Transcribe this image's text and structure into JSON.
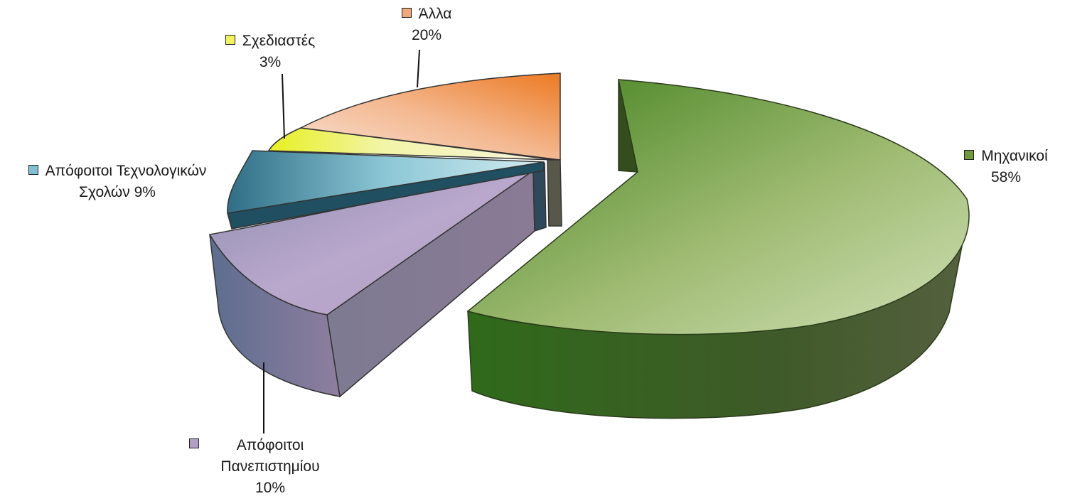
{
  "chart_data": {
    "type": "pie",
    "style": "3d-exploded",
    "slices": [
      {
        "label": "Μηχανικοί",
        "value": 58,
        "value_label": "58%",
        "color": "#6e9a3a"
      },
      {
        "label": "Απόφοιτοι Πανεπιστημίου",
        "value": 10,
        "value_label": "10%",
        "color": "#9d8fb6"
      },
      {
        "label": "Απόφοιτοι Τεχνολογικών Σχολών",
        "value": 9,
        "value_label": "9%",
        "color": "#4d93a8"
      },
      {
        "label": "Σχεδιαστές",
        "value": 3,
        "value_label": "3%",
        "color": "#f2f25a"
      },
      {
        "label": "Άλλα",
        "value": 20,
        "value_label": "20%",
        "color": "#f0a878"
      }
    ],
    "labels": {
      "mech": {
        "name": "Μηχανικοί",
        "pct": "58%"
      },
      "uni": {
        "line1": "Απόφοιτοι",
        "line2": "Πανεπιστημίου",
        "pct": "10%"
      },
      "tech": {
        "line1": "Απόφοιτοι Τεχνολογικών",
        "line2": "Σχολών 9%"
      },
      "design": {
        "name": "Σχεδιαστές",
        "pct": "3%"
      },
      "other": {
        "name": "Άλλα",
        "pct": "20%"
      }
    }
  }
}
